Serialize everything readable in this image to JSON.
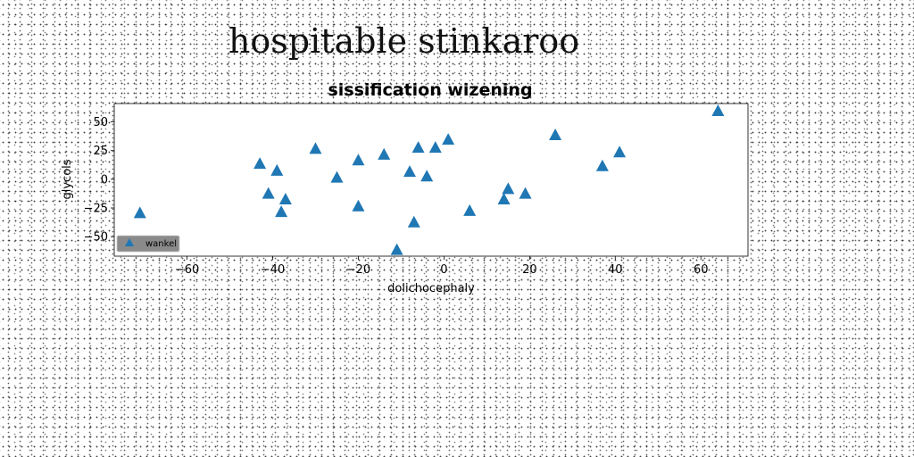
{
  "page": {
    "title": "hospitable stinkaroo"
  },
  "chart_data": {
    "type": "scatter",
    "title": "sissification wizening",
    "xlabel": "dolichocephaly",
    "ylabel": "glycols",
    "xlim": [
      -77,
      71
    ],
    "ylim": [
      -67,
      66
    ],
    "xticks": [
      -60,
      -40,
      -20,
      0,
      20,
      40,
      60
    ],
    "yticks": [
      -50,
      -25,
      0,
      25,
      50
    ],
    "grid": false,
    "legend_position": "lower-left",
    "series": [
      {
        "name": "wankel",
        "marker": "triangle",
        "color": "#1f77b4",
        "points": [
          {
            "x": -71,
            "y": -30
          },
          {
            "x": -43,
            "y": 13
          },
          {
            "x": -41,
            "y": -13
          },
          {
            "x": -39,
            "y": 7
          },
          {
            "x": -38,
            "y": -29
          },
          {
            "x": -37,
            "y": -18
          },
          {
            "x": -30,
            "y": 26
          },
          {
            "x": -25,
            "y": 1
          },
          {
            "x": -20,
            "y": 16
          },
          {
            "x": -20,
            "y": -24
          },
          {
            "x": -14,
            "y": 21
          },
          {
            "x": -11,
            "y": -62
          },
          {
            "x": -8,
            "y": 6
          },
          {
            "x": -7,
            "y": -38
          },
          {
            "x": -6,
            "y": 27
          },
          {
            "x": -4,
            "y": 2
          },
          {
            "x": -2,
            "y": 27
          },
          {
            "x": 1,
            "y": 34
          },
          {
            "x": 6,
            "y": -28
          },
          {
            "x": 14,
            "y": -18
          },
          {
            "x": 15,
            "y": -9
          },
          {
            "x": 19,
            "y": -13
          },
          {
            "x": 26,
            "y": 38
          },
          {
            "x": 37,
            "y": 11
          },
          {
            "x": 41,
            "y": 23
          },
          {
            "x": 64,
            "y": 59
          }
        ]
      }
    ]
  }
}
